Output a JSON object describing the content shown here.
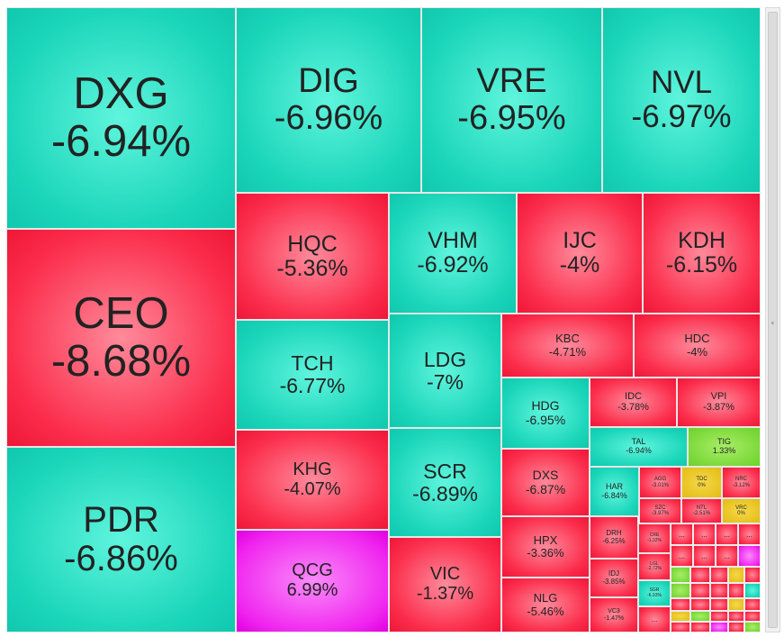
{
  "colors": {
    "down": "#1cd6ba",
    "up": "#fb2e4c",
    "ceiling": "#f026ef",
    "reference": "#e3bb12",
    "rising": "#6dd12a"
  },
  "tiles": {
    "DXG": {
      "symbol": "DXG",
      "change": "-6.94%"
    },
    "CEO": {
      "symbol": "CEO",
      "change": "-8.68%"
    },
    "PDR": {
      "symbol": "PDR",
      "change": "-6.86%"
    },
    "DIG": {
      "symbol": "DIG",
      "change": "-6.96%"
    },
    "VRE": {
      "symbol": "VRE",
      "change": "-6.95%"
    },
    "NVL": {
      "symbol": "NVL",
      "change": "-6.97%"
    },
    "HQC": {
      "symbol": "HQC",
      "change": "-5.36%"
    },
    "VHM": {
      "symbol": "VHM",
      "change": "-6.92%"
    },
    "IJC": {
      "symbol": "IJC",
      "change": "-4%"
    },
    "KDH": {
      "symbol": "KDH",
      "change": "-6.15%"
    },
    "TCH": {
      "symbol": "TCH",
      "change": "-6.77%"
    },
    "LDG": {
      "symbol": "LDG",
      "change": "-7%"
    },
    "KBC": {
      "symbol": "KBC",
      "change": "-4.71%"
    },
    "HDC": {
      "symbol": "HDC",
      "change": "-4%"
    },
    "HDG": {
      "symbol": "HDG",
      "change": "-6.95%"
    },
    "IDC": {
      "symbol": "IDC",
      "change": "-3.78%"
    },
    "VPI": {
      "symbol": "VPI",
      "change": "-3.87%"
    },
    "TAL": {
      "symbol": "TAL",
      "change": "-6.94%"
    },
    "TIG": {
      "symbol": "TIG",
      "change": "1.33%"
    },
    "KHG": {
      "symbol": "KHG",
      "change": "-4.07%"
    },
    "SCR": {
      "symbol": "SCR",
      "change": "-6.89%"
    },
    "DXS": {
      "symbol": "DXS",
      "change": "-6.87%"
    },
    "HAR": {
      "symbol": "HAR",
      "change": "-6.84%"
    },
    "AGG": {
      "symbol": "AGG",
      "change": "-3.01%"
    },
    "TDC": {
      "symbol": "TDC",
      "change": "0%"
    },
    "NRC": {
      "symbol": "NRC",
      "change": "-3.12%"
    },
    "SZC": {
      "symbol": "SZC",
      "change": "-3.97%"
    },
    "NTL": {
      "symbol": "NTL",
      "change": "-2.51%"
    },
    "VRC": {
      "symbol": "VRC",
      "change": "0%"
    },
    "QCG": {
      "symbol": "QCG",
      "change": "6.99%"
    },
    "VIC": {
      "symbol": "VIC",
      "change": "-1.37%"
    },
    "HPX": {
      "symbol": "HPX",
      "change": "-3.36%"
    },
    "DRH": {
      "symbol": "DRH",
      "change": "-6.25%"
    },
    "CRE": {
      "symbol": "CRE",
      "change": "-1.32%"
    },
    "LGL": {
      "symbol": "LGL",
      "change": "-2.72%"
    },
    "IDJ": {
      "symbol": "IDJ",
      "change": "-3.85%"
    },
    "SGR": {
      "symbol": "SGR",
      "change": "-6.93%"
    },
    "NLG": {
      "symbol": "NLG",
      "change": "-5.46%"
    },
    "VC3": {
      "symbol": "VC3",
      "change": "-1.47%"
    }
  },
  "ellipsis": "..."
}
